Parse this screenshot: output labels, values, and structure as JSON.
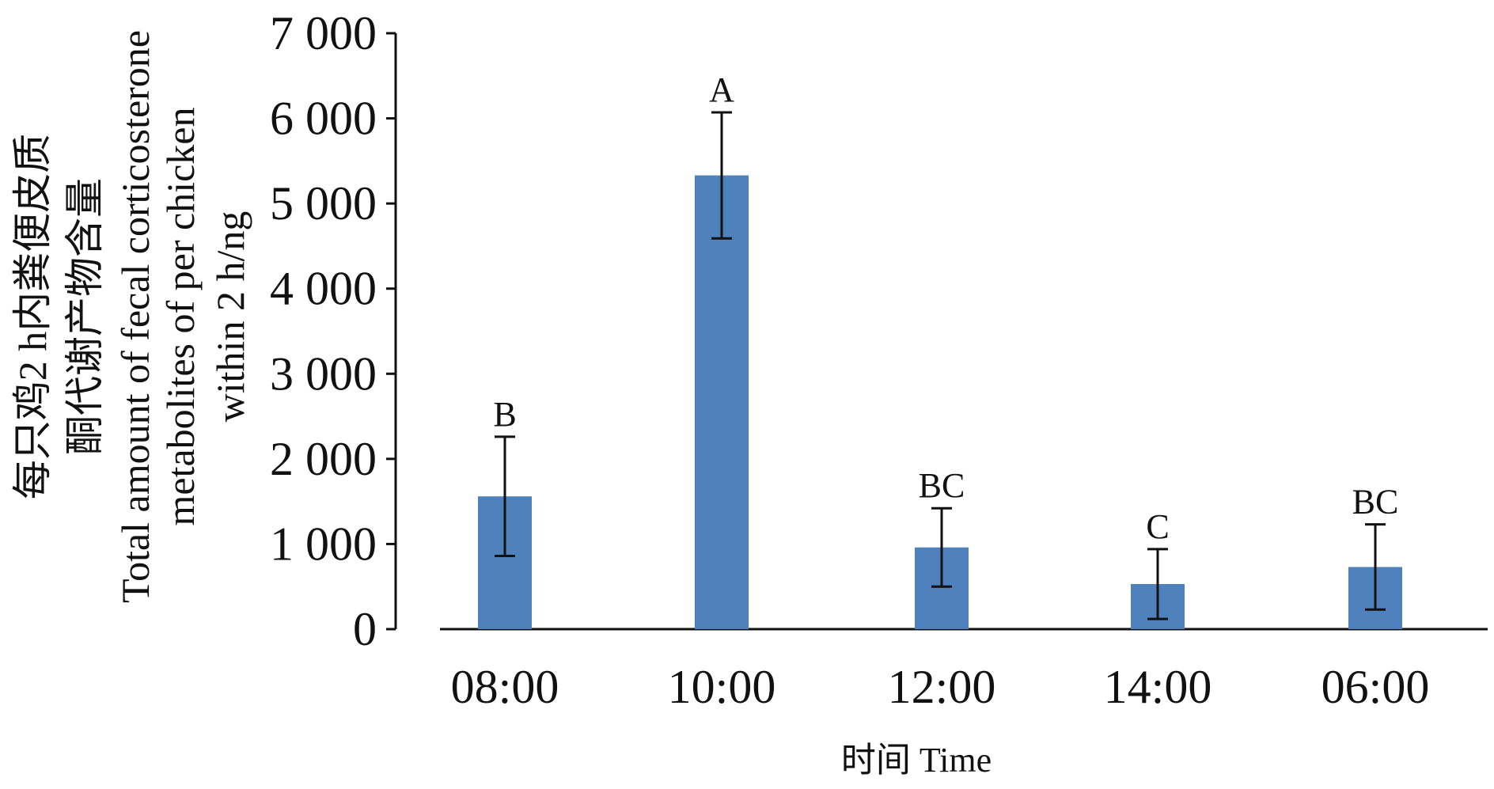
{
  "chart_data": {
    "type": "bar",
    "categories": [
      "08:00",
      "10:00",
      "12:00",
      "14:00",
      "06:00"
    ],
    "values": [
      1560,
      5330,
      960,
      530,
      730
    ],
    "errors": [
      700,
      740,
      460,
      410,
      500
    ],
    "significance_letters": [
      "B",
      "A",
      "BC",
      "C",
      "BC"
    ],
    "xlabel": "时间 Time",
    "ylabel_lines": [
      "每只鸡2 h内粪便皮质",
      "酮代谢产物含量",
      "Total amount of fecal corticosterone",
      "metabolites of per chicken",
      "within 2 h/ng"
    ],
    "yticks": [
      0,
      1000,
      2000,
      3000,
      4000,
      5000,
      6000,
      7000
    ],
    "ytick_labels": [
      "0",
      "1 000",
      "2 000",
      "3 000",
      "4 000",
      "5 000",
      "6 000",
      "7 000"
    ],
    "ylim": [
      0,
      7000
    ],
    "bar_color": "#4f81bd",
    "error_bar_color": "#111111",
    "grid": false,
    "legend": "none"
  }
}
